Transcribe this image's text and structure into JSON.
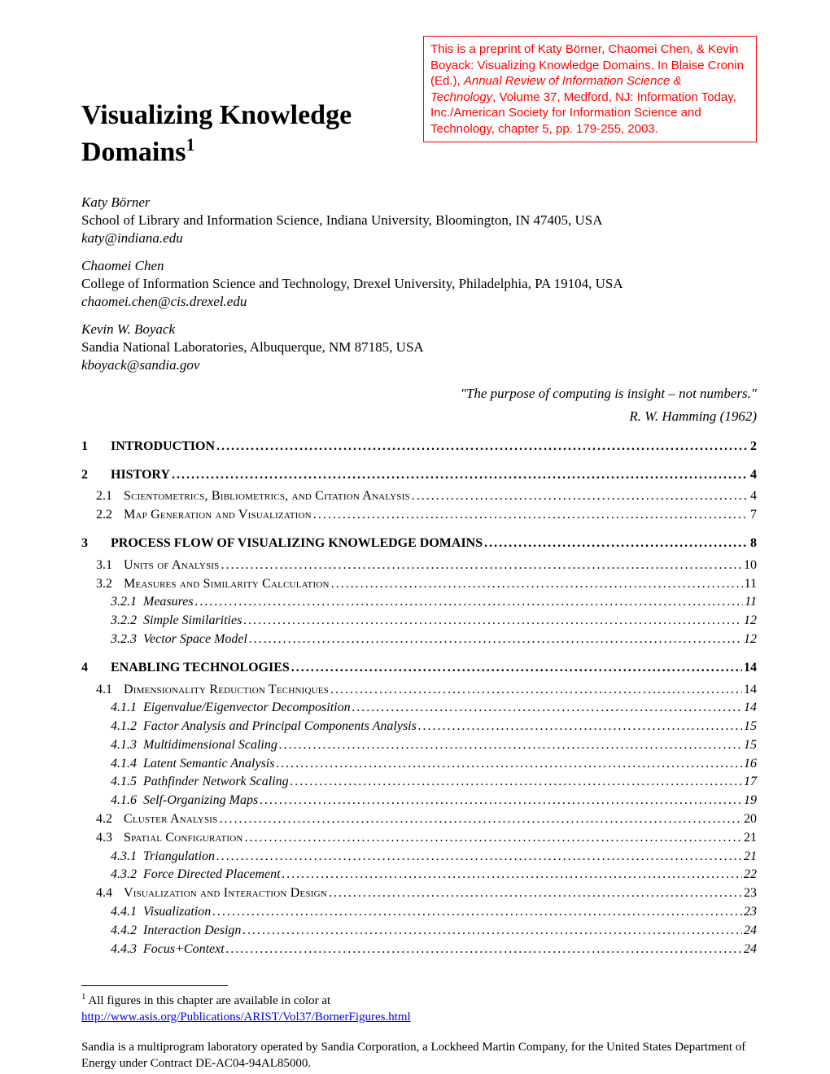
{
  "title": "Visualizing Knowledge Domains",
  "title_sup": "1",
  "preprint": {
    "line1": "This is a preprint of Katy Börner, Chaomei Chen, & Kevin Boyack: Visualizing Knowledge Domains. In Blaise Cronin (Ed.), ",
    "ital": "Annual Review of Information Science & Technology",
    "line2": ", Volume 37, Medford, NJ: Information Today, Inc./American Society for Information Science and Technology, chapter 5, pp. 179-255, 2003."
  },
  "authors": [
    {
      "name": "Katy Börner",
      "affiliation": "School of Library and Information Science, Indiana University, Bloomington, IN 47405, USA",
      "email": "katy@indiana.edu"
    },
    {
      "name": "Chaomei Chen",
      "affiliation": "College of Information Science and Technology, Drexel University, Philadelphia, PA 19104, USA",
      "email": "chaomei.chen@cis.drexel.edu"
    },
    {
      "name": "Kevin W. Boyack",
      "affiliation": "Sandia National Laboratories, Albuquerque, NM 87185, USA",
      "email": "kboyack@sandia.gov"
    }
  ],
  "quote": "\"The purpose of computing is insight – not numbers.\"",
  "attribution": "R. W. Hamming (1962)",
  "toc": [
    {
      "level": 1,
      "num": "1",
      "label": "INTRODUCTION",
      "page": "2",
      "bold": true
    },
    {
      "level": 1,
      "num": "2",
      "label": "HISTORY",
      "page": "4",
      "bold": true
    },
    {
      "level": 2,
      "num": "2.1",
      "label": "Scientometrics, Bibliometrics, and Citation Analysis",
      "page": "4",
      "smallcaps": true
    },
    {
      "level": 2,
      "num": "2.2",
      "label": "Map Generation and Visualization",
      "page": "7",
      "smallcaps": true
    },
    {
      "level": 1,
      "num": "3",
      "label": "PROCESS FLOW OF VISUALIZING KNOWLEDGE DOMAINS",
      "page": "8",
      "bold": true
    },
    {
      "level": 2,
      "num": "3.1",
      "label": "Units of Analysis",
      "page": "10",
      "smallcaps": true
    },
    {
      "level": 2,
      "num": "3.2",
      "label": "Measures and Similarity Calculation",
      "page": "11",
      "smallcaps": true
    },
    {
      "level": 3,
      "num": "3.2.1",
      "label": "Measures",
      "page": "11",
      "ital": true
    },
    {
      "level": 3,
      "num": "3.2.2",
      "label": "Simple Similarities",
      "page": "12",
      "ital": true
    },
    {
      "level": 3,
      "num": "3.2.3",
      "label": "Vector Space Model",
      "page": "12",
      "ital": true
    },
    {
      "level": 1,
      "num": "4",
      "label": "ENABLING TECHNOLOGIES",
      "page": "14",
      "bold": true
    },
    {
      "level": 2,
      "num": "4.1",
      "label": "Dimensionality Reduction Techniques",
      "page": "14",
      "smallcaps": true
    },
    {
      "level": 3,
      "num": "4.1.1",
      "label": "Eigenvalue/Eigenvector Decomposition",
      "page": "14",
      "ital": true
    },
    {
      "level": 3,
      "num": "4.1.2",
      "label": "Factor Analysis and Principal Components Analysis",
      "page": "15",
      "ital": true
    },
    {
      "level": 3,
      "num": "4.1.3",
      "label": "Multidimensional Scaling",
      "page": "15",
      "ital": true
    },
    {
      "level": 3,
      "num": "4.1.4",
      "label": "Latent Semantic Analysis",
      "page": "16",
      "ital": true
    },
    {
      "level": 3,
      "num": "4.1.5",
      "label": "Pathfinder Network Scaling",
      "page": "17",
      "ital": true
    },
    {
      "level": 3,
      "num": "4.1.6",
      "label": "Self-Organizing Maps",
      "page": "19",
      "ital": true
    },
    {
      "level": 2,
      "num": "4.2",
      "label": "Cluster Analysis",
      "page": "20",
      "smallcaps": true
    },
    {
      "level": 2,
      "num": "4.3",
      "label": "Spatial Configuration",
      "page": "21",
      "smallcaps": true
    },
    {
      "level": 3,
      "num": "4.3.1",
      "label": "Triangulation",
      "page": "21",
      "ital": true
    },
    {
      "level": 3,
      "num": "4.3.2",
      "label": "Force Directed Placement",
      "page": "22",
      "ital": true
    },
    {
      "level": 2,
      "num": "4.4",
      "label": "Visualization and Interaction Design",
      "page": "23",
      "smallcaps": true
    },
    {
      "level": 3,
      "num": "4.4.1",
      "label": "Visualization",
      "page": "23",
      "ital": true
    },
    {
      "level": 3,
      "num": "4.4.2",
      "label": "Interaction Design",
      "page": "24",
      "ital": true
    },
    {
      "level": 3,
      "num": "4.4.3",
      "label": "Focus+Context",
      "page": "24",
      "ital": true
    }
  ],
  "footnote": {
    "sup": "1",
    "text": " All figures in this chapter are available in color at",
    "link": "http://www.asis.org/Publications/ARIST/Vol37/BornerFigures.html"
  },
  "sandia": "Sandia is a multiprogram laboratory operated by Sandia Corporation, a Lockheed Martin Company, for the United States Department of Energy under Contract DE-AC04-94AL85000."
}
